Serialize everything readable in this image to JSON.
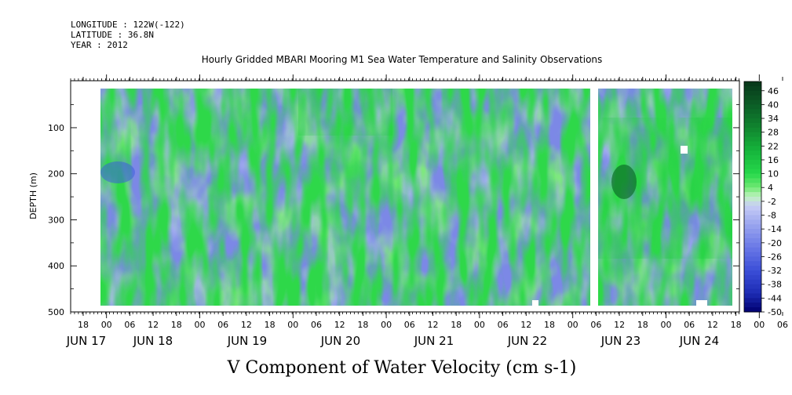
{
  "header": {
    "longitude": "LONGITUDE : 122W(-122)",
    "latitude": "LATITUDE : 36.8N",
    "year": "YEAR : 2012"
  },
  "chart_data": {
    "type": "heatmap",
    "title": "Hourly Gridded MBARI Mooring M1 Sea Water Temperature and Salinity Observations",
    "footer": "V Component of Water Velocity (cm s-1)",
    "ylabel": "DEPTH (m)",
    "y_ticks": [
      "100",
      "200",
      "300",
      "400",
      "500"
    ],
    "ylim": [
      500,
      15
    ],
    "x_range_hours": [
      "2012-06-16T14:00",
      "2012-06-24T23:00"
    ],
    "x_hour_ticks": [
      "18",
      "00",
      "06",
      "12",
      "18",
      "00",
      "06",
      "12",
      "18",
      "00",
      "06",
      "12",
      "18",
      "00",
      "06",
      "12",
      "18",
      "00",
      "06",
      "12",
      "18",
      "00",
      "06",
      "12",
      "18",
      "00",
      "06",
      "12",
      "18",
      "00",
      "06",
      "12",
      "18"
    ],
    "x_day_labels": [
      "JUN 17",
      "JUN 18",
      "JUN 19",
      "JUN 20",
      "JUN 21",
      "JUN 22",
      "JUN 23",
      "JUN 24"
    ],
    "data_gap": [
      "2012-06-23T00:00",
      "2012-06-23T04:00"
    ],
    "colorbar_labels": [
      "46",
      "40",
      "34",
      "28",
      "22",
      "16",
      "10",
      "4",
      "-2",
      "-8",
      "-14",
      "-20",
      "-26",
      "-32",
      "-38",
      "-44",
      "-50"
    ],
    "colorbar_range": [
      -50,
      50
    ],
    "colors": {
      "negative_strong": "#000080",
      "negative_mid": "#3355dd",
      "negative_light": "#9ba6ee",
      "near_zero": "#b8f0b8",
      "positive_light": "#66ee66",
      "positive_mid": "#22cc44",
      "positive_strong": "#0a4a1e"
    }
  }
}
